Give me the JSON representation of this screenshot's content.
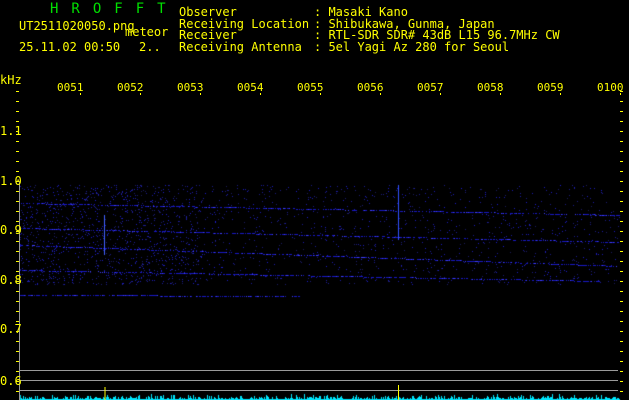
{
  "header": {
    "title": "HROFFT",
    "filename": "UT2511020050.png",
    "mode": "meteor",
    "datetime": "25.11.02 00:50",
    "count": "2..",
    "fields": [
      {
        "label": "Observer",
        "value": ": Masaki Kano"
      },
      {
        "label": "Receiving Location",
        "value": ": Shibukawa, Gunma, Japan"
      },
      {
        "label": "Receiver",
        "value": ": RTL-SDR SDR# 43dB L15 96.7MHz CW"
      },
      {
        "label": "Receiving Antenna",
        "value": ": 5el Yagi Az 280 for Seoul"
      }
    ]
  },
  "axes": {
    "y_unit": "kHz",
    "y_labels": [
      "1.1",
      "1.0",
      "0.9",
      "0.8",
      "0.7",
      "0.6"
    ],
    "time_labels": [
      "0051",
      "0052",
      "0053",
      "0054",
      "0055",
      "0056",
      "0057",
      "0058",
      "0059",
      "0100"
    ]
  },
  "colors": {
    "text": "#ffff00",
    "title": "#00e000",
    "trace": "#2020ff",
    "spectrum": "#00e8ff",
    "grid": "#9a9a9a"
  }
}
